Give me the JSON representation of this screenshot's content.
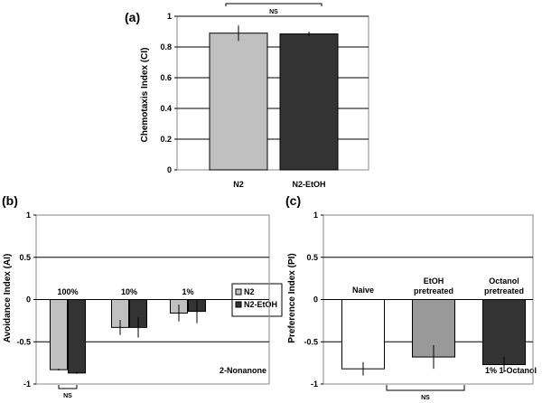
{
  "chart_data": [
    {
      "panel": "(a)",
      "type": "bar",
      "ylabel": "Chemotaxis Index (CI)",
      "ylim": [
        0,
        1
      ],
      "yticks": [
        "0",
        "0.2",
        "0.4",
        "0.6",
        "0.8",
        "1"
      ],
      "categories": [
        "N2",
        "N2-EtOH"
      ],
      "values": [
        0.89,
        0.885
      ],
      "errors": [
        0.05,
        0.015
      ],
      "colors": [
        "#c0c0c0",
        "#333333"
      ],
      "ns_label": "NS",
      "grid": true
    },
    {
      "panel": "(b)",
      "type": "bar",
      "ylabel": "Avoidance Index (AI)",
      "ylim": [
        -1,
        1
      ],
      "yticks": [
        "-1",
        "-0.5",
        "0",
        "0.5",
        "1"
      ],
      "categories": [
        "100%",
        "10%",
        "1%"
      ],
      "series": [
        {
          "name": "N2",
          "color": "#c0c0c0",
          "values": [
            -0.83,
            -0.33,
            -0.16
          ],
          "errors": [
            0.01,
            0.09,
            0.1
          ]
        },
        {
          "name": "N2-EtOH",
          "color": "#333333",
          "values": [
            -0.87,
            -0.33,
            -0.14
          ],
          "errors": [
            0.01,
            0.12,
            0.14
          ]
        }
      ],
      "note": "2-Nonanone",
      "ns_label": "NS",
      "legend_position": "right",
      "grid": true
    },
    {
      "panel": "(c)",
      "type": "bar",
      "ylabel": "Preference Index (PI)",
      "ylim": [
        -1,
        1
      ],
      "yticks": [
        "-1",
        "-0.5",
        "0",
        "0.5",
        "1"
      ],
      "categories": [
        "Naive",
        "EtOH pretreated",
        "Octanol pretreated"
      ],
      "category_lines": [
        [
          "Naive"
        ],
        [
          "EtOH",
          "pretreated"
        ],
        [
          "Octanol",
          "pretreated"
        ]
      ],
      "values": [
        -0.82,
        -0.68,
        -0.77
      ],
      "errors": [
        0.08,
        0.14,
        0.09
      ],
      "colors": [
        "#ffffff",
        "#999999",
        "#333333"
      ],
      "note": "1% 1-Octanol",
      "ns_label": "NS",
      "grid": true
    }
  ]
}
